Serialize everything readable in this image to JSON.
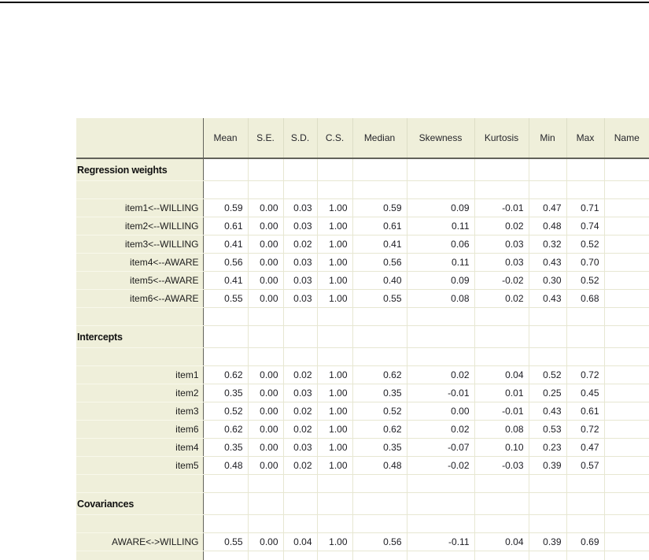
{
  "page": {
    "background_color": "#ffffff",
    "top_rule_color": "#000000"
  },
  "table": {
    "panel_color": "#efefda",
    "grid_color": "#e7e7d2",
    "separator_color": "#62625a",
    "columns": [
      "",
      "Mean",
      "S.E.",
      "S.D.",
      "C.S.",
      "Median",
      "Skewness",
      "Kurtosis",
      "Min",
      "Max",
      "Name"
    ],
    "rows": [
      {
        "type": "section",
        "label": "Regression weights"
      },
      {
        "type": "blank"
      },
      {
        "type": "data",
        "label": "item1<--WILLING",
        "values": [
          "0.59",
          "0.00",
          "0.03",
          "1.00",
          "0.59",
          "0.09",
          "-0.01",
          "0.47",
          "0.71"
        ]
      },
      {
        "type": "data",
        "label": "item2<--WILLING",
        "values": [
          "0.61",
          "0.00",
          "0.03",
          "1.00",
          "0.61",
          "0.11",
          "0.02",
          "0.48",
          "0.74"
        ]
      },
      {
        "type": "data",
        "label": "item3<--WILLING",
        "values": [
          "0.41",
          "0.00",
          "0.02",
          "1.00",
          "0.41",
          "0.06",
          "0.03",
          "0.32",
          "0.52"
        ]
      },
      {
        "type": "data",
        "label": "item4<--AWARE",
        "values": [
          "0.56",
          "0.00",
          "0.03",
          "1.00",
          "0.56",
          "0.11",
          "0.03",
          "0.43",
          "0.70"
        ]
      },
      {
        "type": "data",
        "label": "item5<--AWARE",
        "values": [
          "0.41",
          "0.00",
          "0.03",
          "1.00",
          "0.40",
          "0.09",
          "-0.02",
          "0.30",
          "0.52"
        ]
      },
      {
        "type": "data",
        "label": "item6<--AWARE",
        "values": [
          "0.55",
          "0.00",
          "0.03",
          "1.00",
          "0.55",
          "0.08",
          "0.02",
          "0.43",
          "0.68"
        ]
      },
      {
        "type": "blank"
      },
      {
        "type": "section",
        "label": "Intercepts"
      },
      {
        "type": "blank"
      },
      {
        "type": "data",
        "label": "item1",
        "values": [
          "0.62",
          "0.00",
          "0.02",
          "1.00",
          "0.62",
          "0.02",
          "0.04",
          "0.52",
          "0.72"
        ]
      },
      {
        "type": "data",
        "label": "item2",
        "values": [
          "0.35",
          "0.00",
          "0.03",
          "1.00",
          "0.35",
          "-0.01",
          "0.01",
          "0.25",
          "0.45"
        ]
      },
      {
        "type": "data",
        "label": "item3",
        "values": [
          "0.52",
          "0.00",
          "0.02",
          "1.00",
          "0.52",
          "0.00",
          "-0.01",
          "0.43",
          "0.61"
        ]
      },
      {
        "type": "data",
        "label": "item6",
        "values": [
          "0.62",
          "0.00",
          "0.02",
          "1.00",
          "0.62",
          "0.02",
          "0.08",
          "0.53",
          "0.72"
        ]
      },
      {
        "type": "data",
        "label": "item4",
        "values": [
          "0.35",
          "0.00",
          "0.03",
          "1.00",
          "0.35",
          "-0.07",
          "0.10",
          "0.23",
          "0.47"
        ]
      },
      {
        "type": "data",
        "label": "item5",
        "values": [
          "0.48",
          "0.00",
          "0.02",
          "1.00",
          "0.48",
          "-0.02",
          "-0.03",
          "0.39",
          "0.57"
        ]
      },
      {
        "type": "blank"
      },
      {
        "type": "section",
        "label": "Covariances"
      },
      {
        "type": "blank"
      },
      {
        "type": "data",
        "label": "AWARE<->WILLING",
        "values": [
          "0.55",
          "0.00",
          "0.04",
          "1.00",
          "0.56",
          "-0.11",
          "0.04",
          "0.39",
          "0.69"
        ]
      },
      {
        "type": "partial"
      }
    ]
  }
}
